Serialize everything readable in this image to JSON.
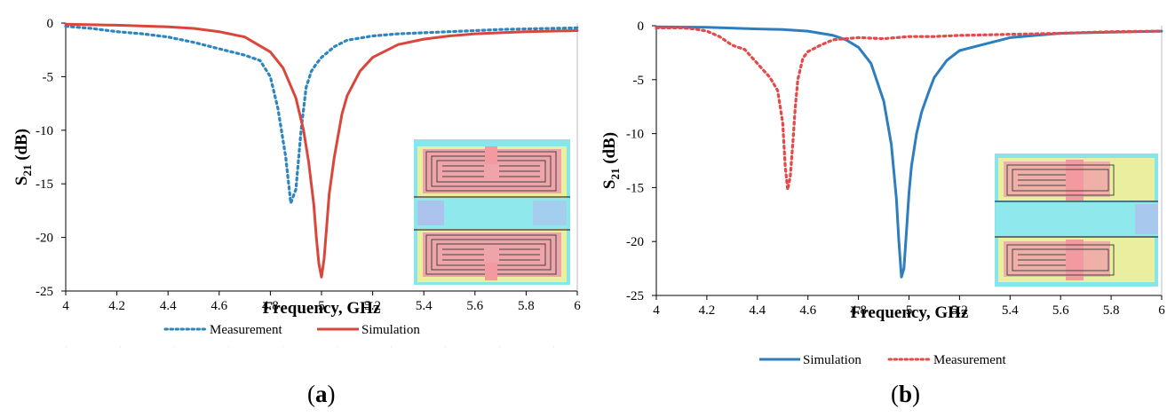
{
  "chart_data": [
    {
      "type": "line",
      "panel_label": "a",
      "xlabel": "Frequency, GHz",
      "ylabel_main": "S",
      "ylabel_sub": "21",
      "ylabel_unit": " (dB)",
      "xlim": [
        4,
        6
      ],
      "ylim": [
        -25,
        0
      ],
      "x_ticks": [
        "4",
        "4.2",
        "4.4",
        "4.6",
        "4.8",
        "5",
        "5.2",
        "5.4",
        "5.6",
        "5.8",
        "6"
      ],
      "y_ticks": [
        "0",
        "-5",
        "-10",
        "-15",
        "-20",
        "-25"
      ],
      "legend": {
        "placement": "bottom"
      },
      "series": [
        {
          "name": "Measurement",
          "style": "dotted",
          "color": "#2e86c1",
          "x": [
            4.0,
            4.1,
            4.2,
            4.3,
            4.4,
            4.5,
            4.6,
            4.7,
            4.76,
            4.8,
            4.83,
            4.86,
            4.88,
            4.9,
            4.92,
            4.94,
            4.96,
            4.98,
            5.0,
            5.05,
            5.1,
            5.2,
            5.3,
            5.4,
            5.5,
            5.6,
            5.7,
            5.8,
            5.9,
            6.0
          ],
          "y": [
            -0.3,
            -0.5,
            -0.8,
            -1.0,
            -1.3,
            -1.8,
            -2.4,
            -3.0,
            -3.5,
            -5.0,
            -8.0,
            -12.5,
            -16.8,
            -15.5,
            -10.0,
            -6.0,
            -4.5,
            -3.8,
            -3.2,
            -2.2,
            -1.6,
            -1.2,
            -1.0,
            -0.9,
            -0.8,
            -0.7,
            -0.6,
            -0.55,
            -0.5,
            -0.45
          ]
        },
        {
          "name": "Simulation",
          "style": "solid",
          "color": "#d9473c",
          "x": [
            4.0,
            4.2,
            4.4,
            4.5,
            4.6,
            4.7,
            4.8,
            4.85,
            4.9,
            4.93,
            4.95,
            4.97,
            4.98,
            4.99,
            5.0,
            5.01,
            5.02,
            5.03,
            5.05,
            5.08,
            5.1,
            5.15,
            5.2,
            5.3,
            5.4,
            5.5,
            5.6,
            5.7,
            5.8,
            6.0
          ],
          "y": [
            -0.1,
            -0.2,
            -0.35,
            -0.5,
            -0.8,
            -1.3,
            -2.7,
            -4.2,
            -7.0,
            -10.0,
            -13.0,
            -17.0,
            -20.0,
            -22.5,
            -23.7,
            -22.0,
            -19.0,
            -16.0,
            -12.5,
            -8.5,
            -6.8,
            -4.5,
            -3.2,
            -2.0,
            -1.5,
            -1.2,
            -1.0,
            -0.9,
            -0.8,
            -0.7
          ]
        }
      ]
    },
    {
      "type": "line",
      "panel_label": "b",
      "xlabel": "Frequency, GHz",
      "ylabel_main": "S",
      "ylabel_sub": "21",
      "ylabel_unit": " (dB)",
      "xlim": [
        4,
        6
      ],
      "ylim": [
        -25,
        0
      ],
      "x_ticks": [
        "4",
        "4.2",
        "4.4",
        "4.6",
        "4.8",
        "5",
        "5.2",
        "5.4",
        "5.6",
        "5.8",
        "6"
      ],
      "y_ticks": [
        "0",
        "-5",
        "-10",
        "-15",
        "-20",
        "-25"
      ],
      "legend": {
        "placement": "bottom"
      },
      "series": [
        {
          "name": "Simulation",
          "style": "solid",
          "color": "#2e7dbf",
          "x": [
            4.0,
            4.2,
            4.4,
            4.5,
            4.6,
            4.7,
            4.75,
            4.8,
            4.85,
            4.9,
            4.93,
            4.95,
            4.96,
            4.97,
            4.98,
            4.99,
            5.0,
            5.01,
            5.03,
            5.05,
            5.08,
            5.1,
            5.15,
            5.2,
            5.3,
            5.4,
            5.5,
            5.6,
            5.8,
            6.0
          ],
          "y": [
            -0.1,
            -0.15,
            -0.3,
            -0.35,
            -0.5,
            -0.9,
            -1.3,
            -2.0,
            -3.5,
            -7.0,
            -11.0,
            -16.0,
            -20.0,
            -23.3,
            -22.5,
            -19.0,
            -15.5,
            -13.0,
            -10.0,
            -8.0,
            -6.0,
            -4.8,
            -3.2,
            -2.3,
            -1.7,
            -1.1,
            -0.9,
            -0.7,
            -0.6,
            -0.5
          ]
        },
        {
          "name": "Measurement",
          "style": "dotted",
          "color": "#e34a4a",
          "x": [
            4.0,
            4.1,
            4.15,
            4.2,
            4.25,
            4.3,
            4.35,
            4.4,
            4.45,
            4.48,
            4.5,
            4.51,
            4.52,
            4.53,
            4.54,
            4.55,
            4.56,
            4.58,
            4.6,
            4.65,
            4.7,
            4.8,
            4.9,
            5.0,
            5.1,
            5.2,
            5.4,
            5.6,
            5.8,
            6.0
          ],
          "y": [
            -0.2,
            -0.2,
            -0.3,
            -0.5,
            -1.0,
            -1.8,
            -2.2,
            -3.5,
            -4.8,
            -6.0,
            -9.0,
            -13.0,
            -15.2,
            -14.0,
            -11.0,
            -7.5,
            -5.0,
            -3.0,
            -2.4,
            -1.8,
            -1.3,
            -1.1,
            -1.2,
            -1.0,
            -1.0,
            -0.9,
            -0.8,
            -0.7,
            -0.55,
            -0.5
          ]
        }
      ]
    }
  ]
}
